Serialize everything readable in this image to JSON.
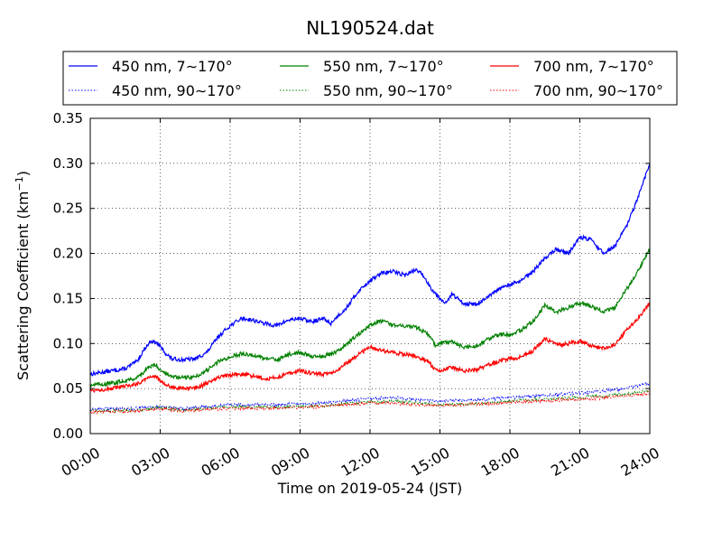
{
  "chart_data": {
    "type": "line",
    "title": "NL190524.dat",
    "xlabel": "Time on 2019-05-24 (JST)",
    "ylabel_main": "Scattering Coefficient (km",
    "ylabel_sup": "−1",
    "ylabel_close": ")",
    "xlim": [
      0,
      24
    ],
    "ylim": [
      0,
      0.35
    ],
    "xtick_values": [
      0,
      3,
      6,
      9,
      12,
      15,
      18,
      21,
      24
    ],
    "xtick_labels": [
      "00:00",
      "03:00",
      "06:00",
      "09:00",
      "12:00",
      "15:00",
      "18:00",
      "21:00",
      "24:00"
    ],
    "ytick_values": [
      0,
      0.05,
      0.1,
      0.15,
      0.2,
      0.25,
      0.3,
      0.35
    ],
    "ytick_labels": [
      "0.00",
      "0.05",
      "0.10",
      "0.15",
      "0.20",
      "0.25",
      "0.30",
      "0.35"
    ],
    "grid": true,
    "legend_position": "top, above plot, 3 columns",
    "series": [
      {
        "name": "450 nm, 7∼170°",
        "color": "#0000ff",
        "style": "solid",
        "points": [
          [
            0,
            0.066
          ],
          [
            1,
            0.07
          ],
          [
            1.5,
            0.072
          ],
          [
            2,
            0.08
          ],
          [
            2.3,
            0.093
          ],
          [
            2.6,
            0.103
          ],
          [
            2.9,
            0.1
          ],
          [
            3.2,
            0.09
          ],
          [
            3.5,
            0.083
          ],
          [
            4,
            0.082
          ],
          [
            4.5,
            0.083
          ],
          [
            5,
            0.09
          ],
          [
            5.5,
            0.108
          ],
          [
            6,
            0.12
          ],
          [
            6.5,
            0.128
          ],
          [
            7,
            0.126
          ],
          [
            7.5,
            0.122
          ],
          [
            8,
            0.12
          ],
          [
            8.5,
            0.126
          ],
          [
            9,
            0.128
          ],
          [
            9.5,
            0.124
          ],
          [
            10,
            0.128
          ],
          [
            10.3,
            0.122
          ],
          [
            10.6,
            0.13
          ],
          [
            11,
            0.14
          ],
          [
            11.5,
            0.158
          ],
          [
            12,
            0.17
          ],
          [
            12.5,
            0.178
          ],
          [
            13,
            0.18
          ],
          [
            13.5,
            0.176
          ],
          [
            14,
            0.182
          ],
          [
            14.3,
            0.175
          ],
          [
            14.6,
            0.162
          ],
          [
            15,
            0.15
          ],
          [
            15.3,
            0.145
          ],
          [
            15.5,
            0.155
          ],
          [
            16,
            0.145
          ],
          [
            16.5,
            0.143
          ],
          [
            17,
            0.15
          ],
          [
            17.5,
            0.16
          ],
          [
            18,
            0.165
          ],
          [
            18.5,
            0.17
          ],
          [
            19,
            0.18
          ],
          [
            19.5,
            0.195
          ],
          [
            20,
            0.205
          ],
          [
            20.5,
            0.2
          ],
          [
            21,
            0.218
          ],
          [
            21.5,
            0.215
          ],
          [
            22,
            0.2
          ],
          [
            22.5,
            0.208
          ],
          [
            23,
            0.23
          ],
          [
            23.5,
            0.262
          ],
          [
            24,
            0.3
          ]
        ]
      },
      {
        "name": "450 nm, 90∼170°",
        "color": "#0000ff",
        "style": "dotted",
        "points": [
          [
            0,
            0.027
          ],
          [
            2,
            0.028
          ],
          [
            3,
            0.03
          ],
          [
            4,
            0.028
          ],
          [
            6,
            0.032
          ],
          [
            8,
            0.032
          ],
          [
            10,
            0.034
          ],
          [
            12,
            0.039
          ],
          [
            13,
            0.04
          ],
          [
            14,
            0.038
          ],
          [
            15,
            0.036
          ],
          [
            17,
            0.038
          ],
          [
            19,
            0.042
          ],
          [
            21,
            0.045
          ],
          [
            23,
            0.05
          ],
          [
            24,
            0.056
          ]
        ]
      },
      {
        "name": "550 nm, 7∼170°",
        "color": "#008000",
        "style": "solid",
        "points": [
          [
            0,
            0.054
          ],
          [
            1,
            0.056
          ],
          [
            2,
            0.062
          ],
          [
            2.5,
            0.073
          ],
          [
            2.8,
            0.077
          ],
          [
            3,
            0.071
          ],
          [
            3.5,
            0.063
          ],
          [
            4,
            0.062
          ],
          [
            4.5,
            0.063
          ],
          [
            5,
            0.07
          ],
          [
            5.5,
            0.08
          ],
          [
            6,
            0.085
          ],
          [
            6.5,
            0.089
          ],
          [
            7,
            0.087
          ],
          [
            7.5,
            0.083
          ],
          [
            8,
            0.082
          ],
          [
            8.5,
            0.088
          ],
          [
            9,
            0.09
          ],
          [
            9.5,
            0.086
          ],
          [
            10,
            0.086
          ],
          [
            10.5,
            0.09
          ],
          [
            11,
            0.1
          ],
          [
            11.5,
            0.11
          ],
          [
            12,
            0.12
          ],
          [
            12.5,
            0.125
          ],
          [
            13,
            0.121
          ],
          [
            13.5,
            0.119
          ],
          [
            14,
            0.118
          ],
          [
            14.5,
            0.11
          ],
          [
            14.8,
            0.098
          ],
          [
            15,
            0.1
          ],
          [
            15.5,
            0.102
          ],
          [
            16,
            0.096
          ],
          [
            16.5,
            0.096
          ],
          [
            17,
            0.104
          ],
          [
            17.5,
            0.11
          ],
          [
            18,
            0.11
          ],
          [
            18.5,
            0.115
          ],
          [
            19,
            0.125
          ],
          [
            19.5,
            0.142
          ],
          [
            20,
            0.135
          ],
          [
            20.5,
            0.14
          ],
          [
            21,
            0.145
          ],
          [
            21.5,
            0.142
          ],
          [
            22,
            0.135
          ],
          [
            22.5,
            0.14
          ],
          [
            23,
            0.16
          ],
          [
            23.5,
            0.18
          ],
          [
            24,
            0.205
          ]
        ]
      },
      {
        "name": "550 nm, 90∼170°",
        "color": "#008000",
        "style": "dotted",
        "points": [
          [
            0,
            0.025
          ],
          [
            2,
            0.026
          ],
          [
            3,
            0.029
          ],
          [
            4,
            0.026
          ],
          [
            6,
            0.03
          ],
          [
            8,
            0.029
          ],
          [
            10,
            0.031
          ],
          [
            12,
            0.035
          ],
          [
            13,
            0.036
          ],
          [
            14,
            0.034
          ],
          [
            15,
            0.032
          ],
          [
            17,
            0.034
          ],
          [
            19,
            0.038
          ],
          [
            21,
            0.04
          ],
          [
            23,
            0.044
          ],
          [
            24,
            0.048
          ]
        ]
      },
      {
        "name": "700 nm, 7∼170°",
        "color": "#ff0000",
        "style": "solid",
        "points": [
          [
            0,
            0.048
          ],
          [
            1,
            0.05
          ],
          [
            2,
            0.055
          ],
          [
            2.5,
            0.063
          ],
          [
            2.8,
            0.064
          ],
          [
            3,
            0.058
          ],
          [
            3.5,
            0.051
          ],
          [
            4,
            0.05
          ],
          [
            4.5,
            0.05
          ],
          [
            5,
            0.056
          ],
          [
            5.5,
            0.062
          ],
          [
            6,
            0.065
          ],
          [
            6.5,
            0.066
          ],
          [
            7,
            0.064
          ],
          [
            7.5,
            0.061
          ],
          [
            8,
            0.062
          ],
          [
            8.5,
            0.067
          ],
          [
            9,
            0.07
          ],
          [
            9.5,
            0.067
          ],
          [
            10,
            0.066
          ],
          [
            10.5,
            0.068
          ],
          [
            11,
            0.078
          ],
          [
            11.5,
            0.088
          ],
          [
            12,
            0.096
          ],
          [
            12.5,
            0.092
          ],
          [
            13,
            0.09
          ],
          [
            13.5,
            0.088
          ],
          [
            14,
            0.086
          ],
          [
            14.5,
            0.08
          ],
          [
            14.8,
            0.07
          ],
          [
            15,
            0.07
          ],
          [
            15.5,
            0.074
          ],
          [
            16,
            0.07
          ],
          [
            16.5,
            0.07
          ],
          [
            17,
            0.075
          ],
          [
            17.5,
            0.08
          ],
          [
            18,
            0.083
          ],
          [
            18.5,
            0.085
          ],
          [
            19,
            0.092
          ],
          [
            19.5,
            0.106
          ],
          [
            20,
            0.098
          ],
          [
            20.5,
            0.1
          ],
          [
            21,
            0.103
          ],
          [
            21.5,
            0.097
          ],
          [
            22,
            0.095
          ],
          [
            22.5,
            0.098
          ],
          [
            23,
            0.115
          ],
          [
            23.5,
            0.128
          ],
          [
            24,
            0.145
          ]
        ]
      },
      {
        "name": "700 nm, 90∼170°",
        "color": "#ff0000",
        "style": "dotted",
        "points": [
          [
            0,
            0.024
          ],
          [
            2,
            0.025
          ],
          [
            3,
            0.028
          ],
          [
            4,
            0.025
          ],
          [
            6,
            0.028
          ],
          [
            8,
            0.028
          ],
          [
            10,
            0.03
          ],
          [
            12,
            0.034
          ],
          [
            13,
            0.034
          ],
          [
            14,
            0.032
          ],
          [
            15,
            0.031
          ],
          [
            17,
            0.033
          ],
          [
            19,
            0.036
          ],
          [
            21,
            0.038
          ],
          [
            23,
            0.042
          ],
          [
            24,
            0.045
          ]
        ]
      }
    ]
  }
}
